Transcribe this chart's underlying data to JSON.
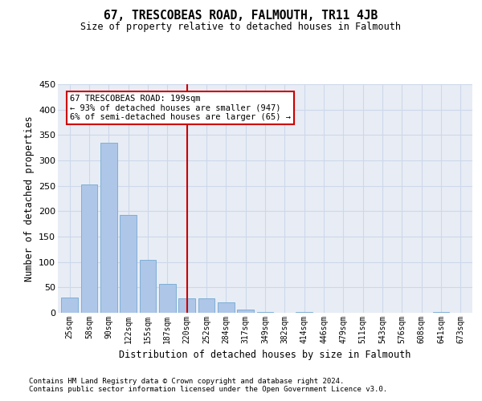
{
  "title": "67, TRESCOBEAS ROAD, FALMOUTH, TR11 4JB",
  "subtitle": "Size of property relative to detached houses in Falmouth",
  "xlabel": "Distribution of detached houses by size in Falmouth",
  "ylabel": "Number of detached properties",
  "bins": [
    "25sqm",
    "58sqm",
    "90sqm",
    "122sqm",
    "155sqm",
    "187sqm",
    "220sqm",
    "252sqm",
    "284sqm",
    "317sqm",
    "349sqm",
    "382sqm",
    "414sqm",
    "446sqm",
    "479sqm",
    "511sqm",
    "543sqm",
    "576sqm",
    "608sqm",
    "641sqm",
    "673sqm"
  ],
  "values": [
    30,
    253,
    335,
    193,
    105,
    57,
    28,
    28,
    20,
    6,
    1,
    0,
    1,
    0,
    0,
    0,
    0,
    0,
    0,
    1,
    0
  ],
  "bar_color": "#aec6e8",
  "bar_edge_color": "#7fafd6",
  "property_line_x": 6.0,
  "annotation_text1": "67 TRESCOBEAS ROAD: 199sqm",
  "annotation_text2": "← 93% of detached houses are smaller (947)",
  "annotation_text3": "6% of semi-detached houses are larger (65) →",
  "annotation_box_color": "#ffffff",
  "annotation_box_edge": "#cc0000",
  "vline_color": "#cc0000",
  "grid_color": "#cdd8ea",
  "background_color": "#e8edf5",
  "ylim": [
    0,
    450
  ],
  "yticks": [
    0,
    50,
    100,
    150,
    200,
    250,
    300,
    350,
    400,
    450
  ],
  "footnote1": "Contains HM Land Registry data © Crown copyright and database right 2024.",
  "footnote2": "Contains public sector information licensed under the Open Government Licence v3.0."
}
